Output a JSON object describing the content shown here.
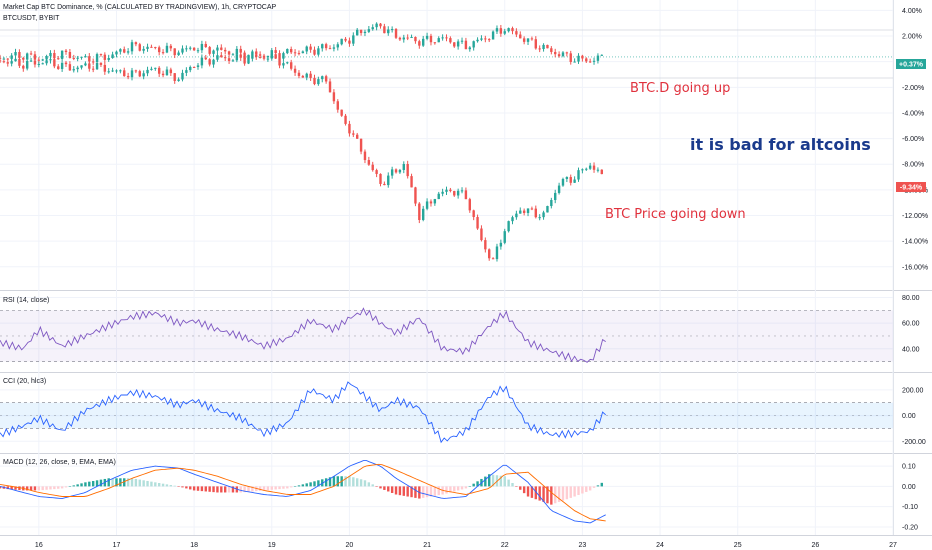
{
  "header": {
    "title": "Market Cap BTC Dominance, % (CALCULATED BY TRADINGVIEW), 1h, CRYPTOCAP",
    "second_symbol": "BTCUSDT, BYBIT"
  },
  "badges": {
    "btcd_value": "+0.37%",
    "btc_value": "-9.34%",
    "up_color": "#26a69a",
    "down_color": "#ef5350"
  },
  "annotations": {
    "btcd_up": "BTC.D going up",
    "bad_for_alts": "it is bad for altcoins",
    "btc_down": "BTC Price going down",
    "red_color": "#e0313d",
    "blue_color": "#1a3a8c"
  },
  "chart_data": [
    {
      "type": "line",
      "name": "main",
      "y_ticks": [
        "4.00%",
        "2.00%",
        "0.00%",
        "-2.00%",
        "-4.00%",
        "-6.00%",
        "-8.00%",
        "-10.00%",
        "-12.00%",
        "-14.00%",
        "-16.00%"
      ],
      "ylim": [
        -17.5,
        4.5
      ],
      "x_ticks": [
        "16",
        "17",
        "18",
        "19",
        "20",
        "21",
        "22",
        "23",
        "24",
        "25",
        "26",
        "27"
      ],
      "series": [
        {
          "name": "Market Cap BTC Dominance, % (CALCULATED BY TRADINGVIEW), 1h, CRYPTOCAP",
          "x": [
            15.5,
            15.8,
            16.0,
            16.3,
            16.6,
            16.9,
            17.2,
            17.5,
            17.8,
            18.0,
            18.3,
            18.6,
            18.9,
            19.2,
            19.5,
            19.8,
            20.0,
            20.2,
            20.4,
            20.6,
            20.9,
            21.2,
            21.5,
            21.8,
            22.0,
            22.3,
            22.6,
            22.9,
            23.1,
            23.3
          ],
          "values": [
            0.3,
            0.5,
            0.2,
            0.6,
            0.2,
            0.4,
            1.2,
            1.0,
            0.8,
            1.1,
            0.9,
            0.6,
            0.5,
            0.7,
            0.9,
            1.2,
            1.8,
            2.5,
            2.8,
            2.0,
            1.6,
            1.8,
            1.2,
            2.0,
            2.6,
            1.6,
            0.8,
            0.2,
            0.1,
            0.4
          ]
        },
        {
          "name": "BTCUSDT, BYBIT",
          "x": [
            15.5,
            15.8,
            16.1,
            16.4,
            16.7,
            17.0,
            17.2,
            17.5,
            17.8,
            18.0,
            18.3,
            18.6,
            18.9,
            19.1,
            19.4,
            19.7,
            19.9,
            20.0,
            20.2,
            20.4,
            20.7,
            20.9,
            21.1,
            21.3,
            21.5,
            21.7,
            21.85,
            22.0,
            22.2,
            22.5,
            22.7,
            22.9,
            23.1,
            23.3
          ],
          "values": [
            0.1,
            -0.2,
            0.0,
            -0.5,
            -0.3,
            -0.8,
            -1.0,
            -0.6,
            -1.3,
            -0.2,
            0.3,
            0.2,
            0.4,
            0.1,
            -1.2,
            -1.5,
            -4.5,
            -5.2,
            -7.5,
            -9.5,
            -8.0,
            -12.0,
            -10.5,
            -10.0,
            -10.5,
            -14.0,
            -15.6,
            -13.0,
            -11.5,
            -12.0,
            -9.5,
            -9.0,
            -8.0,
            -9.3
          ]
        }
      ]
    },
    {
      "type": "line",
      "name": "RSI",
      "title": "RSI (14, close)",
      "y_ticks": [
        "80.00",
        "60.00",
        "40.00"
      ],
      "band": [
        30,
        70
      ],
      "ylim": [
        25,
        82
      ],
      "series": [
        {
          "name": "RSI",
          "x": [
            15.5,
            15.8,
            16.0,
            16.3,
            16.6,
            16.9,
            17.2,
            17.5,
            17.8,
            18.0,
            18.3,
            18.6,
            18.9,
            19.2,
            19.5,
            19.8,
            20.0,
            20.2,
            20.4,
            20.6,
            20.9,
            21.2,
            21.5,
            21.8,
            22.0,
            22.3,
            22.6,
            22.9,
            23.1,
            23.3
          ],
          "values": [
            45,
            40,
            55,
            42,
            50,
            58,
            65,
            68,
            60,
            62,
            55,
            50,
            42,
            48,
            62,
            55,
            64,
            70,
            60,
            52,
            64,
            40,
            38,
            58,
            68,
            45,
            38,
            32,
            30,
            48
          ]
        }
      ]
    },
    {
      "type": "line",
      "name": "CCI",
      "title": "CCI (20, hlc3)",
      "y_ticks": [
        "200.00",
        "0.00",
        "-200.00"
      ],
      "band": [
        -100,
        100
      ],
      "ylim": [
        -260,
        300
      ],
      "series": [
        {
          "name": "CCI",
          "x": [
            15.5,
            15.8,
            16.0,
            16.3,
            16.6,
            16.9,
            17.2,
            17.5,
            17.8,
            18.0,
            18.3,
            18.6,
            18.9,
            19.2,
            19.5,
            19.8,
            20.0,
            20.2,
            20.4,
            20.6,
            20.9,
            21.2,
            21.5,
            21.8,
            22.0,
            22.3,
            22.6,
            22.9,
            23.1,
            23.3
          ],
          "values": [
            -150,
            -80,
            -20,
            -120,
            40,
            120,
            180,
            150,
            80,
            120,
            40,
            -20,
            -140,
            -60,
            200,
            120,
            260,
            150,
            40,
            120,
            60,
            -200,
            -120,
            150,
            220,
            -80,
            -150,
            -140,
            -120,
            30
          ]
        }
      ]
    },
    {
      "type": "bar",
      "name": "MACD",
      "title": "MACD (12, 26, close, 9, EMA, EMA)",
      "y_ticks": [
        "0.10",
        "0.00",
        "-0.10",
        "-0.20"
      ],
      "ylim": [
        -0.22,
        0.14
      ],
      "series": [
        {
          "name": "MACD",
          "x": [
            15.5,
            15.8,
            16.0,
            16.3,
            16.6,
            16.9,
            17.2,
            17.5,
            17.8,
            18.0,
            18.3,
            18.6,
            18.9,
            19.2,
            19.5,
            19.8,
            20.0,
            20.2,
            20.4,
            20.6,
            20.9,
            21.2,
            21.5,
            21.8,
            22.0,
            22.3,
            22.6,
            22.9,
            23.1,
            23.3
          ],
          "values": [
            0.0,
            -0.03,
            -0.05,
            -0.06,
            -0.03,
            0.03,
            0.08,
            0.1,
            0.09,
            0.06,
            0.02,
            -0.02,
            -0.04,
            -0.05,
            -0.02,
            0.05,
            0.1,
            0.13,
            0.1,
            0.04,
            -0.03,
            -0.06,
            -0.05,
            0.05,
            0.11,
            0.02,
            -0.12,
            -0.17,
            -0.18,
            -0.14
          ]
        },
        {
          "name": "Signal",
          "x": [
            15.5,
            15.8,
            16.0,
            16.3,
            16.6,
            16.9,
            17.2,
            17.5,
            17.8,
            18.0,
            18.3,
            18.6,
            18.9,
            19.2,
            19.5,
            19.8,
            20.0,
            20.2,
            20.4,
            20.6,
            20.9,
            21.2,
            21.5,
            21.8,
            22.0,
            22.3,
            22.6,
            22.9,
            23.1,
            23.3
          ],
          "values": [
            0.01,
            -0.01,
            -0.03,
            -0.05,
            -0.05,
            -0.01,
            0.04,
            0.08,
            0.09,
            0.08,
            0.05,
            0.01,
            -0.02,
            -0.04,
            -0.04,
            0.0,
            0.05,
            0.1,
            0.11,
            0.08,
            0.03,
            -0.02,
            -0.04,
            -0.01,
            0.06,
            0.07,
            -0.03,
            -0.12,
            -0.16,
            -0.17
          ]
        }
      ]
    }
  ]
}
